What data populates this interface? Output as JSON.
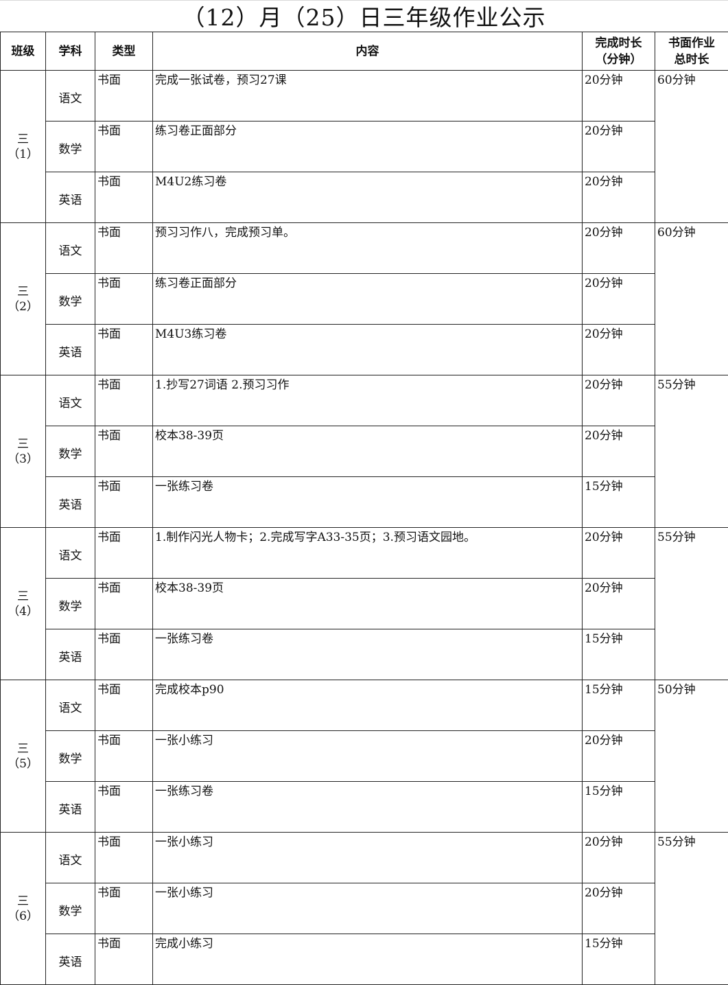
{
  "title": "（12）月（25）日三年级作业公示",
  "headers": [
    "班级",
    "学科",
    "类型",
    "内容",
    "完成时长（分钟）",
    "书面作业总时长"
  ],
  "header_lines": [
    [
      "班级"
    ],
    [
      "学科"
    ],
    [
      "类型"
    ],
    [
      "内容"
    ],
    [
      "完成时长",
      "（分钟）"
    ],
    [
      "书面作业",
      "总时长"
    ]
  ],
  "classes": [
    {
      "grade": "三",
      "num": "（1）",
      "total": "60分钟",
      "rows": [
        {
          "subject": "语文",
          "type": "书面",
          "content": "完成一张试卷，预习27课",
          "time": "20分钟"
        },
        {
          "subject": "数学",
          "type": "书面",
          "content": "练习卷正面部分",
          "time": "20分钟"
        },
        {
          "subject": "英语",
          "type": "书面",
          "content": "M4U2练习卷",
          "time": "20分钟"
        }
      ]
    },
    {
      "grade": "三",
      "num": "（2）",
      "total": "60分钟",
      "rows": [
        {
          "subject": "语文",
          "type": "书面",
          "content": "预习习作八，完成预习单。",
          "time": "20分钟"
        },
        {
          "subject": "数学",
          "type": "书面",
          "content": "练习卷正面部分",
          "time": "20分钟"
        },
        {
          "subject": "英语",
          "type": "书面",
          "content": "M4U3练习卷",
          "time": "20分钟"
        }
      ]
    },
    {
      "grade": "三",
      "num": "（3）",
      "total": "55分钟",
      "rows": [
        {
          "subject": "语文",
          "type": "书面",
          "content": "1.抄写27词语 2.预习习作",
          "time": "20分钟"
        },
        {
          "subject": "数学",
          "type": "书面",
          "content": "校本38-39页",
          "time": "20分钟"
        },
        {
          "subject": "英语",
          "type": "书面",
          "content": "一张练习卷",
          "time": "15分钟"
        }
      ]
    },
    {
      "grade": "三",
      "num": "（4）",
      "total": "55分钟",
      "rows": [
        {
          "subject": "语文",
          "type": "书面",
          "content": "1.制作闪光人物卡；2.完成写字A33-35页；3.预习语文园地。",
          "time": "20分钟"
        },
        {
          "subject": "数学",
          "type": "书面",
          "content": "校本38-39页",
          "time": "20分钟"
        },
        {
          "subject": "英语",
          "type": "书面",
          "content": "一张练习卷",
          "time": "15分钟"
        }
      ]
    },
    {
      "grade": "三",
      "num": "（5）",
      "total": "50分钟",
      "rows": [
        {
          "subject": "语文",
          "type": "书面",
          "content": "完成校本p90",
          "time": "15分钟"
        },
        {
          "subject": "数学",
          "type": "书面",
          "content": "一张小练习",
          "time": "20分钟"
        },
        {
          "subject": "英语",
          "type": "书面",
          "content": "一张练习卷",
          "time": "15分钟"
        }
      ]
    },
    {
      "grade": "三",
      "num": "（6）",
      "total": "55分钟",
      "rows": [
        {
          "subject": "语文",
          "type": "书面",
          "content": "一张小练习",
          "time": "20分钟"
        },
        {
          "subject": "数学",
          "type": "书面",
          "content": "一张小练习",
          "time": "20分钟"
        },
        {
          "subject": "英语",
          "type": "书面",
          "content": "完成小练习",
          "time": "15分钟"
        }
      ]
    }
  ]
}
